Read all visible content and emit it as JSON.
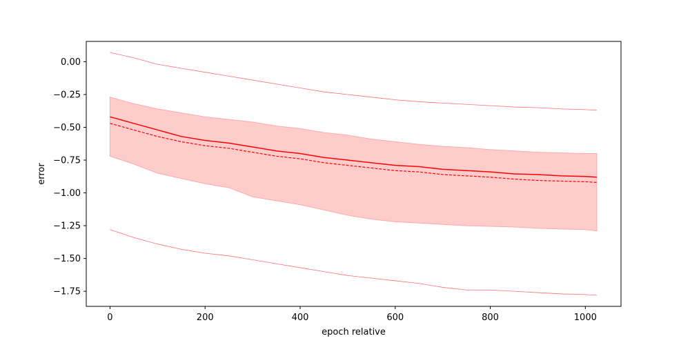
{
  "chart_data": {
    "type": "line",
    "title": "",
    "xlabel": "epoch relative",
    "ylabel": "error",
    "xlim": [
      -50,
      1075
    ],
    "ylim": [
      -1.865,
      0.155
    ],
    "xticks": [
      0,
      200,
      400,
      600,
      800,
      1000
    ],
    "xtick_labels": [
      "0",
      "200",
      "400",
      "600",
      "800",
      "1000"
    ],
    "yticks": [
      0.0,
      -0.25,
      -0.5,
      -0.75,
      -1.0,
      -1.25,
      -1.5,
      -1.75
    ],
    "ytick_labels": [
      "0.00",
      "−0.25",
      "−0.50",
      "−0.75",
      "−1.00",
      "−1.25",
      "−1.50",
      "−1.75"
    ],
    "grid": false,
    "legend": null,
    "colors": {
      "line": "#ff0000",
      "band": "#ffcccc",
      "band_edge": "#ffaaaa",
      "extreme": "#ff7070",
      "axes": "#000000"
    },
    "x": [
      0,
      50,
      100,
      150,
      200,
      250,
      300,
      350,
      400,
      450,
      500,
      550,
      600,
      650,
      700,
      750,
      800,
      850,
      900,
      950,
      1000,
      1024
    ],
    "series": [
      {
        "style": "solid",
        "values": [
          -0.42,
          -0.47,
          -0.52,
          -0.57,
          -0.6,
          -0.62,
          -0.65,
          -0.68,
          -0.7,
          -0.73,
          -0.75,
          -0.77,
          -0.79,
          -0.8,
          -0.82,
          -0.83,
          -0.84,
          -0.855,
          -0.86,
          -0.87,
          -0.875,
          -0.88
        ]
      },
      {
        "style": "dashed",
        "values": [
          -0.47,
          -0.52,
          -0.57,
          -0.61,
          -0.64,
          -0.66,
          -0.69,
          -0.72,
          -0.74,
          -0.77,
          -0.79,
          -0.81,
          -0.83,
          -0.84,
          -0.86,
          -0.87,
          -0.88,
          -0.895,
          -0.905,
          -0.91,
          -0.915,
          -0.92
        ]
      },
      {
        "style": "band-upper",
        "values": [
          -0.27,
          -0.32,
          -0.36,
          -0.39,
          -0.42,
          -0.44,
          -0.46,
          -0.49,
          -0.51,
          -0.54,
          -0.56,
          -0.59,
          -0.61,
          -0.63,
          -0.645,
          -0.655,
          -0.67,
          -0.68,
          -0.69,
          -0.695,
          -0.7,
          -0.7
        ]
      },
      {
        "style": "band-lower",
        "values": [
          -0.72,
          -0.78,
          -0.85,
          -0.89,
          -0.93,
          -0.96,
          -1.03,
          -1.06,
          -1.09,
          -1.13,
          -1.17,
          -1.2,
          -1.22,
          -1.23,
          -1.24,
          -1.25,
          -1.255,
          -1.26,
          -1.27,
          -1.275,
          -1.28,
          -1.29
        ]
      },
      {
        "style": "thin-upper",
        "values": [
          0.07,
          0.03,
          -0.02,
          -0.05,
          -0.08,
          -0.11,
          -0.14,
          -0.17,
          -0.2,
          -0.23,
          -0.25,
          -0.27,
          -0.29,
          -0.305,
          -0.315,
          -0.325,
          -0.335,
          -0.345,
          -0.35,
          -0.36,
          -0.365,
          -0.37
        ]
      },
      {
        "style": "thin-lower",
        "values": [
          -1.28,
          -1.34,
          -1.39,
          -1.43,
          -1.46,
          -1.48,
          -1.51,
          -1.54,
          -1.57,
          -1.6,
          -1.63,
          -1.65,
          -1.67,
          -1.69,
          -1.72,
          -1.74,
          -1.74,
          -1.75,
          -1.76,
          -1.77,
          -1.775,
          -1.78
        ]
      }
    ]
  }
}
